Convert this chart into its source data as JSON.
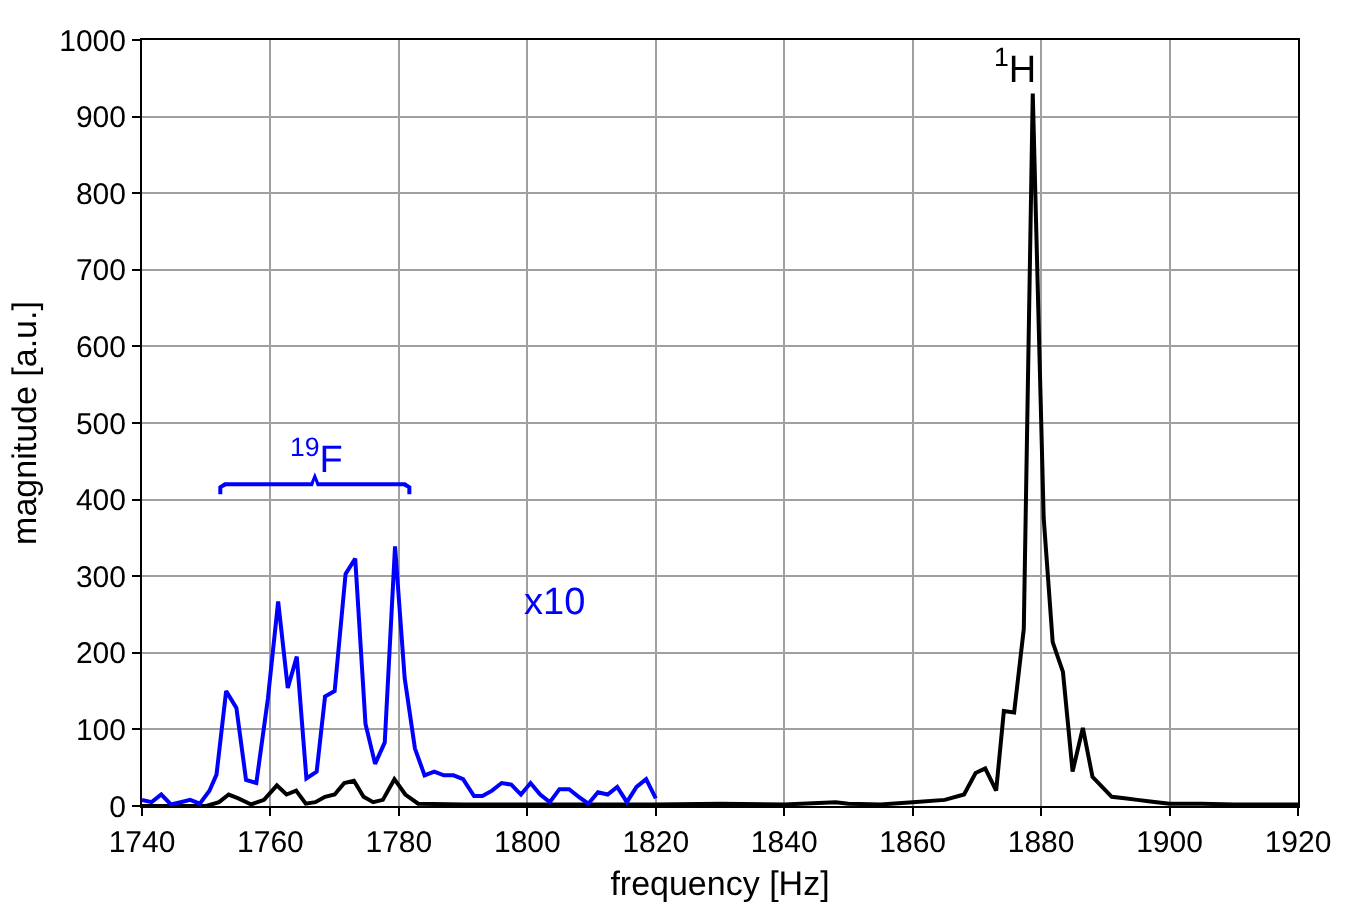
{
  "chart_data": {
    "type": "line",
    "xlabel": "frequency [Hz]",
    "ylabel": "magnitude [a.u.]",
    "xlim": [
      1740,
      1920
    ],
    "xticks": [
      1740,
      1760,
      1780,
      1800,
      1820,
      1840,
      1860,
      1880,
      1900,
      1920
    ],
    "ylim": [
      0,
      1000
    ],
    "yticks": [
      0,
      100,
      200,
      300,
      400,
      500,
      600,
      700,
      800,
      900,
      1000
    ],
    "grid": true,
    "marker": "none",
    "line_style": "solid",
    "annotations": [
      "$^{19}$F",
      "x10",
      "$^{1}$H"
    ],
    "series": [
      {
        "color": "#000000",
        "x": [
          1740,
          1750,
          1752,
          1753.5,
          1755,
          1757,
          1759,
          1761,
          1762.5,
          1764,
          1765.5,
          1767,
          1768.5,
          1770,
          1771.5,
          1773,
          1774.5,
          1776,
          1777.5,
          1779.3,
          1781,
          1783,
          1790,
          1800,
          1810,
          1820,
          1830,
          1840,
          1848,
          1850,
          1855,
          1860,
          1865,
          1868,
          1869.8,
          1871.3,
          1873,
          1874.2,
          1875.8,
          1877.3,
          1878.7,
          1880.4,
          1881.8,
          1883.4,
          1884.9,
          1886.5,
          1888,
          1889.5,
          1891,
          1893,
          1895,
          1897,
          1900,
          1905,
          1910,
          1920
        ],
        "values": [
          0,
          0,
          5,
          15,
          10,
          2,
          8,
          27,
          15,
          20,
          3,
          5,
          12,
          15,
          30,
          33,
          12,
          5,
          8,
          35,
          15,
          3,
          2,
          2,
          2,
          2,
          3,
          2,
          5,
          3,
          2,
          5,
          8,
          15,
          43,
          49,
          20,
          124,
          122,
          231,
          930,
          376,
          214,
          175,
          45,
          102,
          38,
          25,
          12,
          10,
          8,
          6,
          3,
          3,
          2,
          2
        ]
      },
      {
        "color": "#0000ff",
        "x": [
          1740,
          1741.5,
          1743,
          1744.5,
          1746,
          1747.5,
          1749,
          1750.5,
          1751.6,
          1753.1,
          1754.7,
          1756.2,
          1757.8,
          1759.6,
          1761.2,
          1762.7,
          1764.1,
          1765.6,
          1767.2,
          1768.5,
          1770,
          1771.7,
          1773.2,
          1774.8,
          1776.3,
          1777.8,
          1779.4,
          1780.9,
          1782.5,
          1784,
          1785.5,
          1787,
          1788.5,
          1790,
          1791.7,
          1793,
          1794.5,
          1796,
          1797.5,
          1799,
          1800.5,
          1802,
          1803.5,
          1805,
          1806.5,
          1808,
          1809.5,
          1811,
          1812.5,
          1814,
          1815.5,
          1817,
          1818.5,
          1820
        ],
        "values": [
          8,
          5,
          15,
          2,
          5,
          8,
          3,
          20,
          41,
          150,
          128,
          34,
          30,
          140,
          267,
          154,
          195,
          36,
          45,
          143,
          150,
          303,
          323,
          107,
          55,
          83,
          339,
          167,
          75,
          40,
          45,
          40,
          40,
          35,
          13,
          13,
          20,
          30,
          28,
          15,
          30,
          15,
          5,
          22,
          22,
          12,
          3,
          18,
          15,
          25,
          5,
          25,
          35,
          10
        ]
      }
    ]
  }
}
